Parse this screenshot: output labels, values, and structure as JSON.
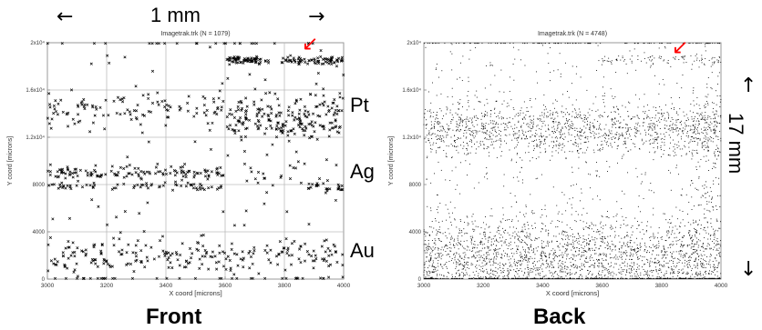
{
  "figure": {
    "scale_bar_horizontal": {
      "label": "1 mm",
      "left_arrow": "←",
      "right_arrow": "→"
    },
    "scale_bar_vertical": {
      "label": "17 mm",
      "up_arrow": "↑",
      "down_arrow": "↓"
    },
    "layer_labels": [
      "Pt",
      "Ag",
      "Au"
    ],
    "marker_arrow": "↙",
    "marker_color": "#ff0000",
    "point_color": "#000000"
  },
  "chart_data": [
    {
      "type": "scatter",
      "title": "Imagetrak.trk   (N = 1079)",
      "caption": "Front",
      "xlabel": "X coord [microns]",
      "ylabel": "Y coord [microns]",
      "xlim": [
        3000,
        4000
      ],
      "ylim": [
        0,
        20000
      ],
      "xticks": [
        "3000",
        "3200",
        "3400",
        "3600",
        "3800",
        "4000"
      ],
      "yticks": [
        "0",
        "4000",
        "8000",
        "1.2x10⁴",
        "1.6x10⁴",
        "2x10⁴"
      ],
      "grid": true,
      "marker": "x",
      "n_points": 1079,
      "bands": [
        {
          "x": [
            3600,
            3750
          ],
          "y": 18500,
          "spread": 150,
          "n": 70
        },
        {
          "x": [
            3790,
            4000
          ],
          "y": 18500,
          "spread": 150,
          "n": 75
        },
        {
          "x": [
            3000,
            3600
          ],
          "y": 14400,
          "spread": 800,
          "n": 110
        },
        {
          "x": [
            3600,
            4000
          ],
          "y": 14000,
          "spread": 900,
          "n": 150
        },
        {
          "x": [
            3600,
            4000
          ],
          "y": 12900,
          "spread": 400,
          "n": 60
        },
        {
          "x": [
            3000,
            3600
          ],
          "y": 9000,
          "spread": 250,
          "n": 120
        },
        {
          "x": [
            3000,
            3600
          ],
          "y": 7800,
          "spread": 150,
          "n": 65
        },
        {
          "x": [
            3600,
            3880
          ],
          "y": 9000,
          "spread": 900,
          "n": 20
        },
        {
          "x": [
            3880,
            4000
          ],
          "y": 7700,
          "spread": 200,
          "n": 25
        },
        {
          "x": [
            3000,
            4000
          ],
          "y": 1900,
          "spread": 700,
          "n": 220
        },
        {
          "x": [
            3000,
            4000
          ],
          "y": 10000,
          "spread": 9500,
          "n": 164
        }
      ]
    },
    {
      "type": "scatter",
      "title": "Imagetrak.trk   (N = 4748)",
      "caption": "Back",
      "xlabel": "X coord [microns]",
      "ylabel": "Y coord [microns]",
      "xlim": [
        3000,
        4000
      ],
      "ylim": [
        0,
        20000
      ],
      "xticks": [
        "3000",
        "3200",
        "3400",
        "3600",
        "3800",
        "4000"
      ],
      "yticks": [
        "0",
        "4000",
        "8000",
        "1.2x10⁴",
        "1.6x10⁴",
        "2x10⁴"
      ],
      "grid": false,
      "marker": "dot",
      "n_points": 4748,
      "bands": [
        {
          "x": [
            3000,
            4000
          ],
          "y": 1700,
          "spread": 1700,
          "n": 2300
        },
        {
          "x": [
            3000,
            4000
          ],
          "y": 12700,
          "spread": 1100,
          "n": 1300
        },
        {
          "x": [
            3600,
            4000
          ],
          "y": 18600,
          "spread": 200,
          "n": 80
        },
        {
          "x": [
            3900,
            4000
          ],
          "y": 8000,
          "spread": 6000,
          "n": 200
        },
        {
          "x": [
            3000,
            4000
          ],
          "y": 10000,
          "spread": 9500,
          "n": 868
        }
      ]
    }
  ]
}
